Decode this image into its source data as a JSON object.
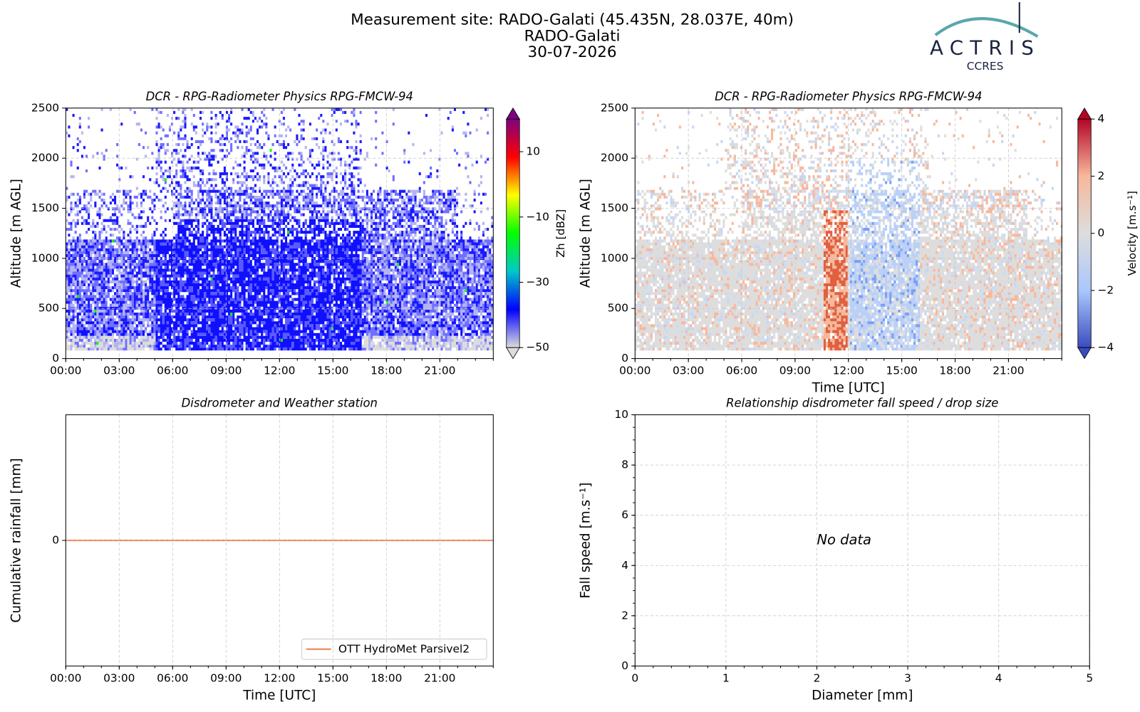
{
  "header": {
    "title_lines": [
      "Measurement site: RADO-Galati (45.435N, 28.037E, 40m)",
      "RADO-Galati",
      "30-07-2026"
    ],
    "logo": {
      "name": "ACTRIS",
      "subtitle": "CCRES"
    }
  },
  "chart_data": [
    {
      "type": "heatmap",
      "title": "DCR - RPG-Radiometer Physics RPG-FMCW-94",
      "y_label": "Altitude [m AGL]",
      "xlim": [
        0,
        24
      ],
      "xticks": [
        {
          "value": 0,
          "label": "00:00"
        },
        {
          "value": 3,
          "label": "03:00"
        },
        {
          "value": 6,
          "label": "06:00"
        },
        {
          "value": 9,
          "label": "09:00"
        },
        {
          "value": 12,
          "label": "12:00"
        },
        {
          "value": 15,
          "label": "15:00"
        },
        {
          "value": 18,
          "label": "18:00"
        },
        {
          "value": 21,
          "label": "21:00"
        }
      ],
      "ylim": [
        0,
        2500
      ],
      "yticks": [
        0,
        500,
        1000,
        1500,
        2000,
        2500
      ],
      "grid": true,
      "colorbar": {
        "label": "Zh [dBZ]",
        "lim": [
          -50,
          20
        ],
        "ticks": [
          {
            "value": -50,
            "label": "−50"
          },
          {
            "value": -30,
            "label": "−30"
          },
          {
            "value": -10,
            "label": "−10"
          },
          10
        ],
        "colors": [
          "#dcdcdc",
          "#0000ff",
          "#00c8c8",
          "#00ff00",
          "#ffff00",
          "#ff0000",
          "#800080"
        ]
      }
    },
    {
      "type": "heatmap",
      "title": "DCR - RPG-Radiometer Physics RPG-FMCW-94",
      "y_label": "Altitude [m AGL]",
      "x_label": "Time [UTC]",
      "xlim": [
        0,
        24
      ],
      "xticks": [
        {
          "value": 0,
          "label": "00:00"
        },
        {
          "value": 3,
          "label": "03:00"
        },
        {
          "value": 6,
          "label": "06:00"
        },
        {
          "value": 9,
          "label": "09:00"
        },
        {
          "value": 12,
          "label": "12:00"
        },
        {
          "value": 15,
          "label": "15:00"
        },
        {
          "value": 18,
          "label": "18:00"
        },
        {
          "value": 21,
          "label": "21:00"
        }
      ],
      "ylim": [
        0,
        2500
      ],
      "yticks": [
        0,
        500,
        1000,
        1500,
        2000,
        2500
      ],
      "grid": true,
      "colorbar": {
        "label": "Velocity [m.s⁻¹]",
        "lim": [
          -4,
          4
        ],
        "ticks": [
          {
            "value": -4,
            "label": "−4"
          },
          {
            "value": -2,
            "label": "−2"
          },
          0,
          2,
          4
        ],
        "colors": [
          "#3b4cc0",
          "#aac7fd",
          "#dddddd",
          "#f7b89c",
          "#b40426"
        ]
      }
    },
    {
      "type": "line",
      "title": "Disdrometer and Weather station",
      "y_label": "Cumulative rainfall [mm]",
      "x_label": "Time [UTC]",
      "xlim": [
        0,
        24
      ],
      "xticks": [
        {
          "value": 0,
          "label": "00:00"
        },
        {
          "value": 3,
          "label": "03:00"
        },
        {
          "value": 6,
          "label": "06:00"
        },
        {
          "value": 9,
          "label": "09:00"
        },
        {
          "value": 12,
          "label": "12:00"
        },
        {
          "value": 15,
          "label": "15:00"
        },
        {
          "value": 18,
          "label": "18:00"
        },
        {
          "value": 21,
          "label": "21:00"
        }
      ],
      "ylim": [
        -1,
        1
      ],
      "yticks": [
        0
      ],
      "grid": true,
      "legend": "lower right",
      "x": [
        0,
        24
      ],
      "series": [
        {
          "name": "OTT HydroMet Parsivel2",
          "color": "#ee8a5f",
          "values": [
            0,
            0
          ]
        }
      ]
    },
    {
      "type": "scatter",
      "title": "Relationship disdrometer fall speed / drop size",
      "y_label": "Fall speed [m.s⁻¹]",
      "x_label": "Diameter [mm]",
      "xlim": [
        0,
        5
      ],
      "xticks": [
        0,
        1,
        2,
        3,
        4,
        5
      ],
      "ylim": [
        0,
        10
      ],
      "yticks": [
        0,
        2,
        4,
        6,
        8,
        10
      ],
      "grid": true,
      "annotation": "No data"
    }
  ]
}
